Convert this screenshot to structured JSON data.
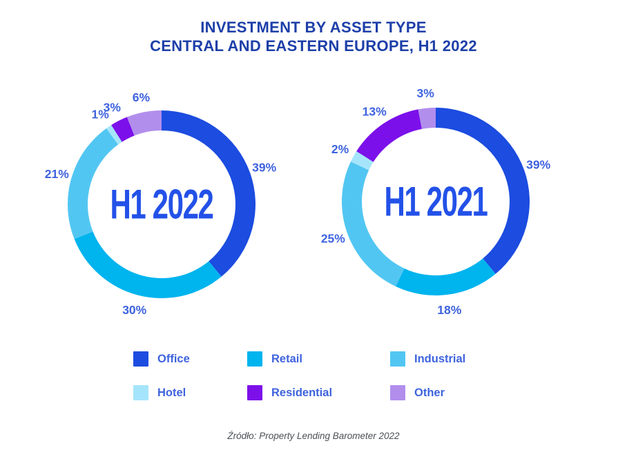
{
  "title": {
    "line1": "INVESTMENT BY ASSET TYPE",
    "line2": "CENTRAL AND EASTERN EUROPE, H1 2022"
  },
  "source": "Źródło: Property Lending Barometer 2022",
  "palette": {
    "title_text": "#1d3fa8",
    "percent_label_text": "#3e63dd",
    "center_label_text": "#2351e8",
    "source_text": "#4b5055",
    "background": "#ffffff"
  },
  "legend": {
    "items": [
      {
        "label": "Office",
        "color": "#1c4ce0"
      },
      {
        "label": "Retail",
        "color": "#00b4ee"
      },
      {
        "label": "Industrial",
        "color": "#52c6f2"
      },
      {
        "label": "Hotel",
        "color": "#a5e5fb"
      },
      {
        "label": "Residential",
        "color": "#7c10ea"
      },
      {
        "label": "Other",
        "color": "#b18eec"
      }
    ]
  },
  "chart_data": [
    {
      "type": "pie",
      "subtype": "donut",
      "center_label": "H1 2022",
      "categories": [
        "Office",
        "Retail",
        "Industrial",
        "Hotel",
        "Residential",
        "Other"
      ],
      "values": [
        39,
        30,
        21,
        1,
        3,
        6
      ],
      "unit": "%",
      "labels": [
        "39%",
        "30%",
        "21%",
        "1%",
        "3%",
        "6%"
      ],
      "colors": [
        "#1c4ce0",
        "#00b4ee",
        "#52c6f2",
        "#a5e5fb",
        "#7c10ea",
        "#b18eec"
      ],
      "start_angle_deg": 0,
      "direction": "clockwise",
      "legend_position": "bottom"
    },
    {
      "type": "pie",
      "subtype": "donut",
      "center_label": "H1 2021",
      "categories": [
        "Office",
        "Retail",
        "Industrial",
        "Hotel",
        "Residential",
        "Other"
      ],
      "values": [
        39,
        18,
        25,
        2,
        13,
        3
      ],
      "unit": "%",
      "labels": [
        "39%",
        "18%",
        "25%",
        "2%",
        "13%",
        "3%"
      ],
      "colors": [
        "#1c4ce0",
        "#00b4ee",
        "#52c6f2",
        "#a5e5fb",
        "#7c10ea",
        "#b18eec"
      ],
      "start_angle_deg": 0,
      "direction": "clockwise",
      "legend_position": "bottom"
    }
  ]
}
